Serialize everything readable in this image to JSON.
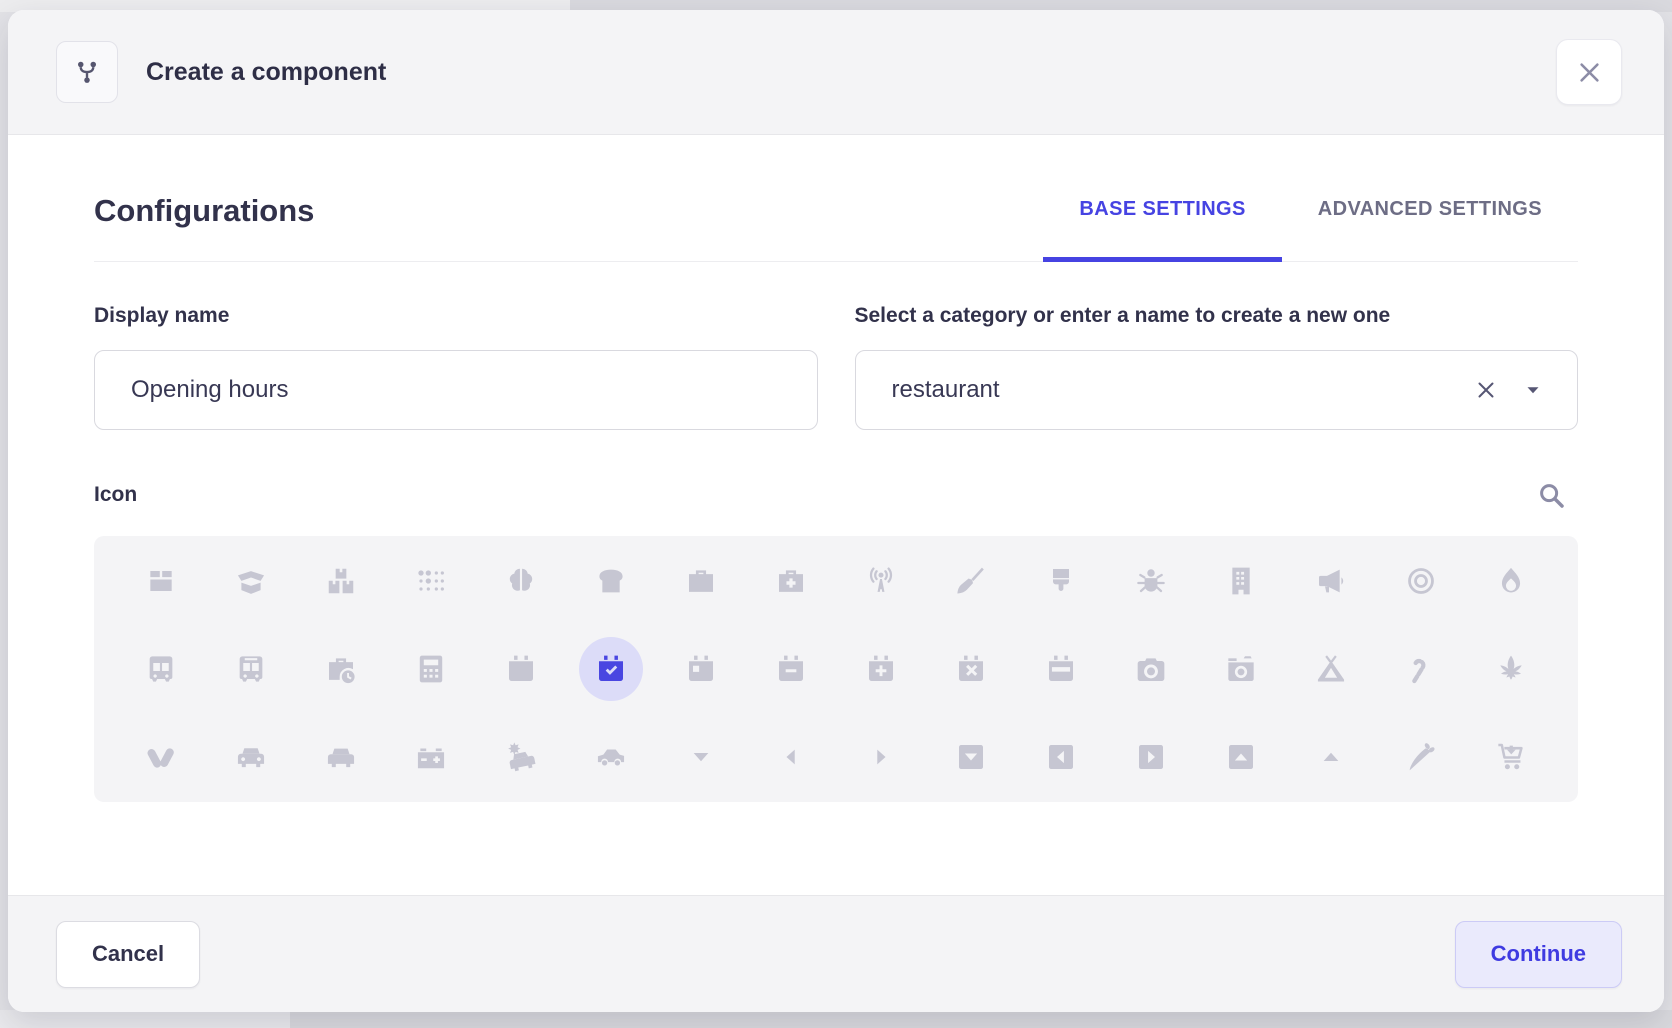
{
  "modal": {
    "title": "Create a component",
    "header_icon": "fork-icon",
    "close_icon": "close-icon"
  },
  "configurations": {
    "heading": "Configurations",
    "tabs": [
      {
        "label": "BASE SETTINGS",
        "active": true
      },
      {
        "label": "ADVANCED SETTINGS",
        "active": false
      }
    ]
  },
  "form": {
    "display_name": {
      "label": "Display name",
      "value": "Opening hours"
    },
    "category": {
      "label": "Select a category or enter a name to create a new one",
      "value": "restaurant"
    }
  },
  "icon_picker": {
    "label": "Icon",
    "search_icon": "search-icon",
    "selected_icon": "calendar-check",
    "rows": [
      [
        "box",
        "box-open",
        "boxes-stacked",
        "braille",
        "brain",
        "bread-slice",
        "briefcase",
        "briefcase-medical",
        "broadcast-tower",
        "broom",
        "brush",
        "bug",
        "building",
        "bullhorn",
        "bullseye",
        "burn"
      ],
      [
        "bus",
        "bus-alt",
        "business-time",
        "calculator",
        "calendar",
        "calendar-check",
        "calendar-day",
        "calendar-minus",
        "calendar-plus",
        "calendar-times",
        "calendar-week",
        "camera",
        "camera-retro",
        "campground",
        "candy-cane",
        "cannabis"
      ],
      [
        "capsules",
        "car",
        "car-alt",
        "car-battery",
        "car-crash",
        "car-side",
        "caret-down",
        "caret-left",
        "caret-right",
        "caret-square-down",
        "caret-square-left",
        "caret-square-right",
        "caret-square-up",
        "caret-up",
        "carrot",
        "cart-arrow-down"
      ]
    ]
  },
  "footer": {
    "cancel": "Cancel",
    "continue": "Continue"
  },
  "colors": {
    "accent": "#4643e2",
    "icon_gray": "#c6c6d2",
    "selected_circle_bg": "#dcdcf8",
    "selected_icon": "#4946e1",
    "header_bg": "#f4f4f6",
    "continue_bg": "#eaeafc"
  }
}
